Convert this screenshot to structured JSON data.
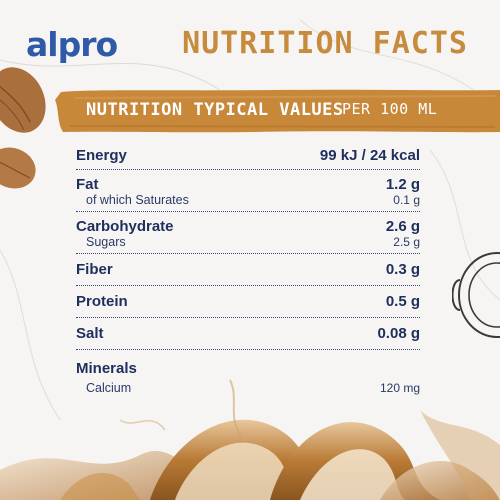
{
  "brand": {
    "logo_text": "alpro"
  },
  "header": {
    "title": "NUTRITION FACTS"
  },
  "banner": {
    "left": "NUTRITION TYPICAL VALUES",
    "right": "PER 100 ML"
  },
  "rows": [
    {
      "label": "Energy",
      "value": "99 kJ / 24 kcal"
    },
    {
      "label": "Fat",
      "value": "1.2 g",
      "sub_label": "of which Saturates",
      "sub_value": "0.1 g"
    },
    {
      "label": "Carbohydrate",
      "value": "2.6 g",
      "sub_label": "Sugars",
      "sub_value": "2.5 g"
    },
    {
      "label": "Fiber",
      "value": "0.3 g"
    },
    {
      "label": "Protein",
      "value": "0.5 g"
    },
    {
      "label": "Salt",
      "value": "0.08 g"
    },
    {
      "label": "Minerals",
      "sub_label": "Calcium",
      "sub_value": "120 mg"
    }
  ],
  "colors": {
    "brand_blue": "#2f5aa8",
    "accent_caramel": "#c68b3c",
    "text_navy": "#1e2f5e"
  },
  "icons": [
    "almond-icon",
    "cup-icon"
  ]
}
